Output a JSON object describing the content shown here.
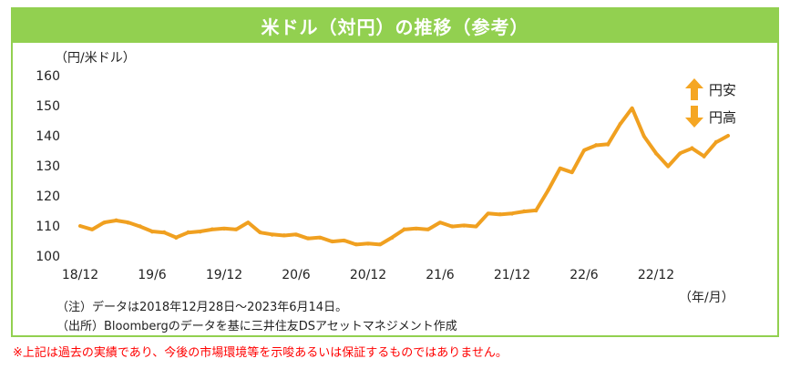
{
  "title": "米ドル（対円）の推移（参考）",
  "unit_label": "（円/米ドル）",
  "x_unit_label": "（年/月）",
  "legend": {
    "up_label": "円安",
    "down_label": "円高"
  },
  "notes": {
    "note1": "（注）データは2018年12月28日～2023年6月14日。",
    "note2": "（出所）Bloombergのデータを基に三井住友DSアセットマネジメント作成"
  },
  "disclaimer": "※上記は過去の実績であり、今後の市場環境等を示唆あるいは保証するものではありません。",
  "colors": {
    "frame": "#92d050",
    "line": "#f0a020",
    "disclaimer": "#ff0000"
  },
  "chart_data": {
    "type": "line",
    "title": "米ドル（対円）の推移（参考）",
    "ylabel": "（円/米ドル）",
    "xlabel": "（年/月）",
    "ylim": [
      100,
      160
    ],
    "yticks": [
      100,
      110,
      120,
      130,
      140,
      150,
      160
    ],
    "xticks": [
      "18/12",
      "19/6",
      "19/12",
      "20/6",
      "20/12",
      "21/6",
      "21/12",
      "22/6",
      "22/12"
    ],
    "grid": false,
    "series": [
      {
        "x": [
          "2018-12",
          "2019-01",
          "2019-02",
          "2019-03",
          "2019-04",
          "2019-05",
          "2019-06",
          "2019-07",
          "2019-08",
          "2019-09",
          "2019-10",
          "2019-11",
          "2019-12",
          "2020-01",
          "2020-02",
          "2020-03",
          "2020-04",
          "2020-05",
          "2020-06",
          "2020-07",
          "2020-08",
          "2020-09",
          "2020-10",
          "2020-11",
          "2020-12",
          "2021-01",
          "2021-02",
          "2021-03",
          "2021-04",
          "2021-05",
          "2021-06",
          "2021-07",
          "2021-08",
          "2021-09",
          "2021-10",
          "2021-11",
          "2021-12",
          "2022-01",
          "2022-02",
          "2022-03",
          "2022-04",
          "2022-05",
          "2022-06",
          "2022-07",
          "2022-08",
          "2022-09",
          "2022-10",
          "2022-11",
          "2022-12",
          "2023-01",
          "2023-02",
          "2023-03",
          "2023-04",
          "2023-05",
          "2023-06"
        ],
        "values": [
          110,
          109,
          111,
          112,
          111,
          110,
          108,
          108,
          106,
          108,
          108,
          109,
          109,
          109,
          111,
          108,
          107,
          107,
          107,
          106,
          106,
          105,
          105,
          104,
          104,
          104,
          106,
          109,
          109,
          109,
          111,
          110,
          110,
          110,
          114,
          114,
          114,
          115,
          115,
          122,
          129,
          128,
          135,
          137,
          137,
          144,
          149,
          140,
          134,
          130,
          134,
          136,
          133,
          138,
          140
        ]
      }
    ]
  }
}
